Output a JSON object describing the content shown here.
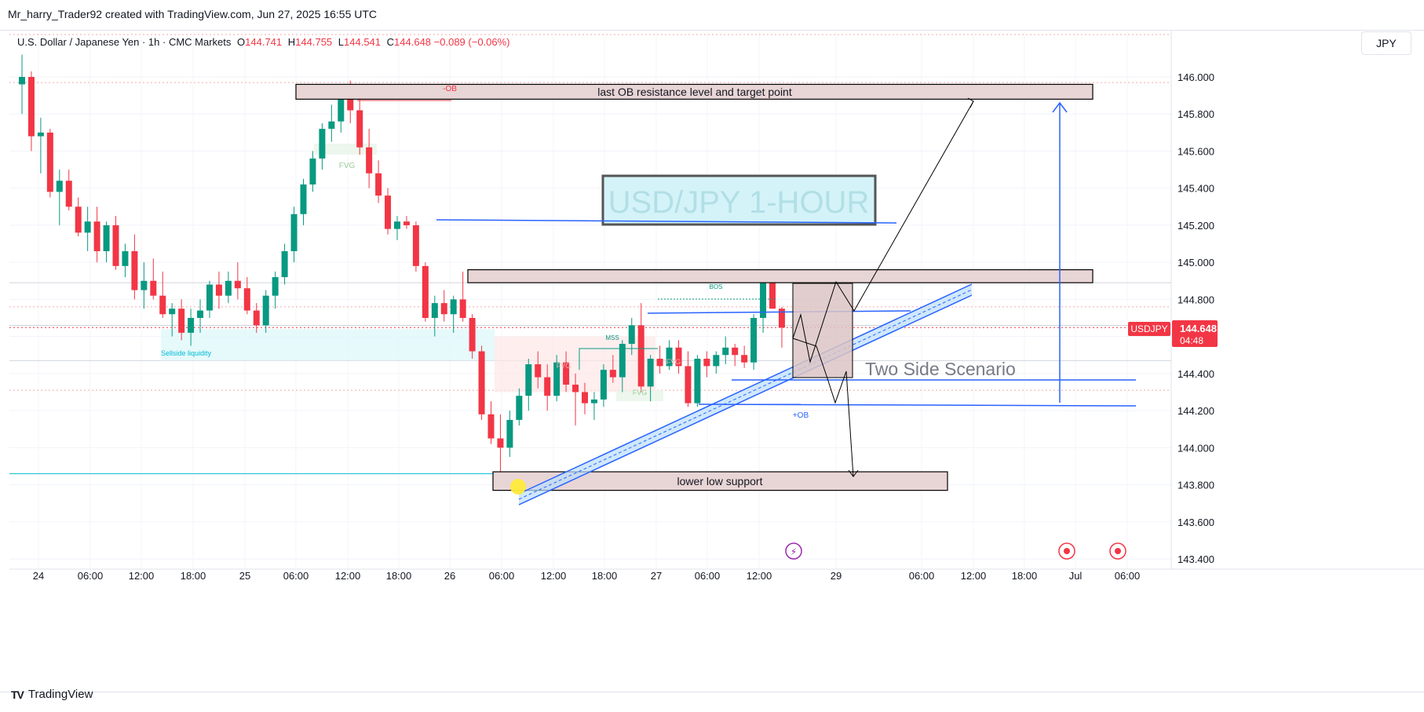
{
  "header": {
    "caption": "Mr_harry_Trader92 created with TradingView.com, Jun 27, 2025 16:55 UTC"
  },
  "legend": {
    "instrument": "U.S. Dollar / Japanese Yen · 1h · CMC Markets",
    "open_label": "O",
    "open": "144.741",
    "high_label": "H",
    "high": "144.755",
    "low_label": "L",
    "low": "144.541",
    "close_label": "C",
    "close": "144.648",
    "change": "−0.089 (−0.06%)"
  },
  "currency_button": "JPY",
  "price_badge": {
    "symbol": "USDJPY",
    "price": "144.648",
    "countdown": "04:48"
  },
  "brand": {
    "logo": "TV",
    "name": "TradingView"
  },
  "colors": {
    "up": "#089981",
    "down": "#f23645",
    "trendline": "#2962ff",
    "zone_fill": "#e8d5d5",
    "zone_border": "#000000",
    "liquidity": "#00bcd4"
  },
  "chart_data": {
    "type": "candlestick",
    "symbol": "USDJPY",
    "timeframe": "1h",
    "y_axis": {
      "ticks": [
        "146.000",
        "145.800",
        "145.600",
        "145.400",
        "145.200",
        "145.000",
        "144.800",
        "144.600",
        "144.400",
        "144.200",
        "144.000",
        "143.800",
        "143.600",
        "143.400"
      ],
      "ylim": [
        143.4,
        146.1
      ]
    },
    "x_axis": {
      "ticks": [
        "24",
        "06:00",
        "12:00",
        "18:00",
        "25",
        "06:00",
        "12:00",
        "18:00",
        "26",
        "06:00",
        "12:00",
        "18:00",
        "27",
        "06:00",
        "12:00",
        "29",
        "06:00",
        "12:00",
        "18:00",
        "Jul",
        "06:00"
      ]
    },
    "last_price": 144.648,
    "candles": [
      [
        145.96,
        146.12,
        145.8,
        146.0
      ],
      [
        146.0,
        146.03,
        145.6,
        145.68
      ],
      [
        145.68,
        145.78,
        145.48,
        145.7
      ],
      [
        145.7,
        145.72,
        145.35,
        145.38
      ],
      [
        145.38,
        145.5,
        145.2,
        145.44
      ],
      [
        145.44,
        145.5,
        145.28,
        145.3
      ],
      [
        145.3,
        145.35,
        145.14,
        145.16
      ],
      [
        145.16,
        145.3,
        145.06,
        145.22
      ],
      [
        145.22,
        145.3,
        145.0,
        145.06
      ],
      [
        145.06,
        145.22,
        145.0,
        145.2
      ],
      [
        145.2,
        145.25,
        144.96,
        144.98
      ],
      [
        144.98,
        145.1,
        144.92,
        145.06
      ],
      [
        145.06,
        145.15,
        144.8,
        144.85
      ],
      [
        144.85,
        145.0,
        144.75,
        144.9
      ],
      [
        144.9,
        145.02,
        144.8,
        144.82
      ],
      [
        144.82,
        144.95,
        144.7,
        144.72
      ],
      [
        144.72,
        144.78,
        144.6,
        144.75
      ],
      [
        144.75,
        144.8,
        144.58,
        144.62
      ],
      [
        144.62,
        144.75,
        144.55,
        144.7
      ],
      [
        144.7,
        144.8,
        144.62,
        144.74
      ],
      [
        144.74,
        144.9,
        144.7,
        144.88
      ],
      [
        144.88,
        144.95,
        144.75,
        144.82
      ],
      [
        144.82,
        144.95,
        144.78,
        144.9
      ],
      [
        144.9,
        145.0,
        144.8,
        144.86
      ],
      [
        144.86,
        144.92,
        144.72,
        144.74
      ],
      [
        144.74,
        144.78,
        144.62,
        144.66
      ],
      [
        144.66,
        144.85,
        144.62,
        144.82
      ],
      [
        144.82,
        144.95,
        144.75,
        144.92
      ],
      [
        144.92,
        145.1,
        144.88,
        145.06
      ],
      [
        145.06,
        145.3,
        145.0,
        145.26
      ],
      [
        145.26,
        145.45,
        145.2,
        145.42
      ],
      [
        145.42,
        145.6,
        145.38,
        145.56
      ],
      [
        145.56,
        145.75,
        145.5,
        145.72
      ],
      [
        145.72,
        145.85,
        145.65,
        145.76
      ],
      [
        145.76,
        145.95,
        145.7,
        145.9
      ],
      [
        145.9,
        145.98,
        145.75,
        145.82
      ],
      [
        145.82,
        145.88,
        145.58,
        145.62
      ],
      [
        145.62,
        145.72,
        145.4,
        145.48
      ],
      [
        145.48,
        145.55,
        145.32,
        145.36
      ],
      [
        145.36,
        145.4,
        145.15,
        145.18
      ],
      [
        145.18,
        145.25,
        145.12,
        145.22
      ],
      [
        145.22,
        145.25,
        145.18,
        145.2
      ],
      [
        145.2,
        145.22,
        144.95,
        144.98
      ],
      [
        144.98,
        145.0,
        144.68,
        144.7
      ],
      [
        144.7,
        144.82,
        144.6,
        144.78
      ],
      [
        144.78,
        144.85,
        144.68,
        144.72
      ],
      [
        144.72,
        144.82,
        144.62,
        144.8
      ],
      [
        144.8,
        144.95,
        144.68,
        144.7
      ],
      [
        144.7,
        144.72,
        144.48,
        144.52
      ],
      [
        144.52,
        144.55,
        144.15,
        144.18
      ],
      [
        144.18,
        144.25,
        144.02,
        144.05
      ],
      [
        144.05,
        144.18,
        143.85,
        144.0
      ],
      [
        144.0,
        144.2,
        143.95,
        144.15
      ],
      [
        144.15,
        144.32,
        144.12,
        144.28
      ],
      [
        144.28,
        144.48,
        144.2,
        144.45
      ],
      [
        144.45,
        144.52,
        144.32,
        144.38
      ],
      [
        144.38,
        144.45,
        144.2,
        144.28
      ],
      [
        144.28,
        144.5,
        144.25,
        144.46
      ],
      [
        144.46,
        144.52,
        144.3,
        144.34
      ],
      [
        144.34,
        144.4,
        144.12,
        144.3
      ],
      [
        144.3,
        144.35,
        144.18,
        144.24
      ],
      [
        144.24,
        144.3,
        144.15,
        144.26
      ],
      [
        144.26,
        144.45,
        144.22,
        144.42
      ],
      [
        144.42,
        144.5,
        144.35,
        144.38
      ],
      [
        144.38,
        144.58,
        144.3,
        144.56
      ],
      [
        144.56,
        144.7,
        144.5,
        144.66
      ],
      [
        144.66,
        144.78,
        144.3,
        144.33
      ],
      [
        144.33,
        144.5,
        144.25,
        144.48
      ],
      [
        144.48,
        144.55,
        144.4,
        144.44
      ],
      [
        144.44,
        144.58,
        144.42,
        144.54
      ],
      [
        144.54,
        144.58,
        144.4,
        144.44
      ],
      [
        144.44,
        144.52,
        144.22,
        144.24
      ],
      [
        144.24,
        144.5,
        144.22,
        144.48
      ],
      [
        144.48,
        144.52,
        144.38,
        144.44
      ],
      [
        144.44,
        144.52,
        144.4,
        144.5
      ],
      [
        144.5,
        144.6,
        144.45,
        144.54
      ],
      [
        144.54,
        144.56,
        144.44,
        144.5
      ],
      [
        144.5,
        144.55,
        144.43,
        144.46
      ],
      [
        144.46,
        144.72,
        144.42,
        144.7
      ],
      [
        144.7,
        144.95,
        144.62,
        144.9
      ],
      [
        144.9,
        144.92,
        144.75,
        144.75
      ],
      [
        144.75,
        144.76,
        144.54,
        144.648
      ]
    ],
    "annotations": {
      "title_box": "USD/JPY 1-HOUR",
      "resistance_zone": {
        "label": "last OB resistance level and target point",
        "top": 145.96,
        "bottom": 145.88
      },
      "middle_zone": {
        "top": 144.96,
        "bottom": 144.89
      },
      "support_zone": {
        "label": "lower low support",
        "top": 143.87,
        "bottom": 143.77
      },
      "scenario_label": "Two Side Scenario",
      "small_labels": {
        "ob_minus": "-OB",
        "fvg_top": "FVG",
        "sellside": "Sellside liquidity",
        "bos": "BOS",
        "mss": "MSS",
        "fvg_mid": "FVG",
        "fvg_mid2": "FVG",
        "fvg_low": "FVG",
        "ob_plus": "+OB"
      }
    }
  }
}
